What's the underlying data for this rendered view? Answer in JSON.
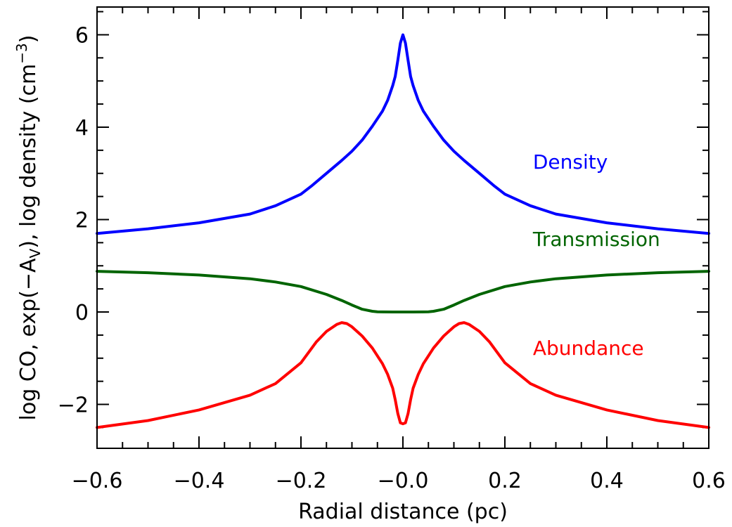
{
  "chart_data": {
    "type": "line",
    "xlabel": "Radial distance (pc)",
    "ylabel": {
      "prefix": "log CO, exp(−A",
      "sub": "V",
      "middle": "), log density (cm",
      "sup": "−3",
      "suffix": ")"
    },
    "xlim": [
      -0.6,
      0.6
    ],
    "ylim": [
      -2.95,
      6.6
    ],
    "xticks": [
      {
        "value": -0.6,
        "label": "−0.6"
      },
      {
        "value": -0.4,
        "label": "−0.4"
      },
      {
        "value": -0.2,
        "label": "−0.2"
      },
      {
        "value": 0.0,
        "label": "−0.0"
      },
      {
        "value": 0.2,
        "label": "0.2"
      },
      {
        "value": 0.4,
        "label": "0.4"
      },
      {
        "value": 0.6,
        "label": "0.6"
      }
    ],
    "yticks": [
      {
        "value": -2,
        "label": "−2"
      },
      {
        "value": 0,
        "label": "0"
      },
      {
        "value": 2,
        "label": "2"
      },
      {
        "value": 4,
        "label": "4"
      },
      {
        "value": 6,
        "label": "6"
      }
    ],
    "grid": false,
    "series": [
      {
        "name": "Density",
        "color": "#0000ff",
        "label_pos": [
          0.255,
          3.1
        ],
        "x": [
          -0.6,
          -0.5,
          -0.4,
          -0.3,
          -0.25,
          -0.2,
          -0.18,
          -0.15,
          -0.12,
          -0.1,
          -0.08,
          -0.06,
          -0.04,
          -0.03,
          -0.02,
          -0.015,
          -0.01,
          -0.005,
          0.0,
          0.005,
          0.01,
          0.015,
          0.02,
          0.03,
          0.04,
          0.06,
          0.08,
          0.1,
          0.12,
          0.15,
          0.18,
          0.2,
          0.25,
          0.3,
          0.4,
          0.5,
          0.6
        ],
        "y": [
          1.7,
          1.8,
          1.93,
          2.12,
          2.3,
          2.55,
          2.72,
          3.0,
          3.28,
          3.48,
          3.72,
          4.02,
          4.35,
          4.58,
          4.9,
          5.1,
          5.45,
          5.82,
          6.0,
          5.82,
          5.45,
          5.1,
          4.9,
          4.58,
          4.35,
          4.02,
          3.72,
          3.48,
          3.28,
          3.0,
          2.72,
          2.55,
          2.3,
          2.12,
          1.93,
          1.8,
          1.7
        ]
      },
      {
        "name": "Transmission",
        "color": "#006400",
        "label_pos": [
          0.255,
          1.43
        ],
        "x": [
          -0.6,
          -0.5,
          -0.4,
          -0.3,
          -0.25,
          -0.2,
          -0.15,
          -0.12,
          -0.1,
          -0.08,
          -0.06,
          -0.05,
          -0.04,
          -0.02,
          0.0,
          0.02,
          0.04,
          0.05,
          0.06,
          0.08,
          0.1,
          0.12,
          0.15,
          0.2,
          0.25,
          0.3,
          0.4,
          0.5,
          0.6
        ],
        "y": [
          0.88,
          0.85,
          0.8,
          0.72,
          0.65,
          0.55,
          0.38,
          0.25,
          0.15,
          0.06,
          0.015,
          0.005,
          0.002,
          0.0,
          0.0,
          0.0,
          0.002,
          0.005,
          0.015,
          0.06,
          0.15,
          0.25,
          0.38,
          0.55,
          0.65,
          0.72,
          0.8,
          0.85,
          0.88
        ]
      },
      {
        "name": "Abundance",
        "color": "#ff0000",
        "label_pos": [
          0.255,
          -0.93
        ],
        "x": [
          -0.6,
          -0.5,
          -0.4,
          -0.3,
          -0.25,
          -0.2,
          -0.17,
          -0.15,
          -0.13,
          -0.12,
          -0.11,
          -0.1,
          -0.08,
          -0.06,
          -0.04,
          -0.03,
          -0.02,
          -0.015,
          -0.01,
          -0.005,
          0.0,
          0.005,
          0.01,
          0.015,
          0.02,
          0.03,
          0.04,
          0.06,
          0.08,
          0.1,
          0.11,
          0.12,
          0.13,
          0.15,
          0.17,
          0.2,
          0.25,
          0.3,
          0.4,
          0.5,
          0.6
        ],
        "y": [
          -2.5,
          -2.35,
          -2.12,
          -1.8,
          -1.55,
          -1.1,
          -0.65,
          -0.42,
          -0.27,
          -0.23,
          -0.25,
          -0.32,
          -0.52,
          -0.78,
          -1.12,
          -1.35,
          -1.65,
          -1.9,
          -2.2,
          -2.4,
          -2.42,
          -2.4,
          -2.2,
          -1.9,
          -1.65,
          -1.35,
          -1.12,
          -0.78,
          -0.52,
          -0.32,
          -0.25,
          -0.23,
          -0.27,
          -0.42,
          -0.65,
          -1.1,
          -1.55,
          -1.8,
          -2.12,
          -2.35,
          -2.5
        ]
      }
    ]
  }
}
